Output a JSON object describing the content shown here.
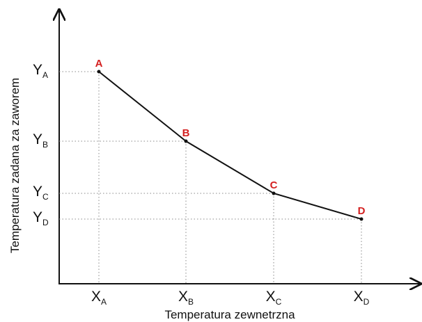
{
  "axis_labels": {
    "x": "Temperatura zewnetrzna",
    "y": "Temperatura zadana za zaworem"
  },
  "points": [
    {
      "label": "A"
    },
    {
      "label": "B"
    },
    {
      "label": "C"
    },
    {
      "label": "D"
    }
  ],
  "x_ticks": [
    {
      "main": "X",
      "sub": "A"
    },
    {
      "main": "X",
      "sub": "B"
    },
    {
      "main": "X",
      "sub": "C"
    },
    {
      "main": "X",
      "sub": "D"
    }
  ],
  "y_ticks": [
    {
      "main": "Y",
      "sub": "A"
    },
    {
      "main": "Y",
      "sub": "B"
    },
    {
      "main": "Y",
      "sub": "C"
    },
    {
      "main": "Y",
      "sub": "D"
    }
  ]
}
